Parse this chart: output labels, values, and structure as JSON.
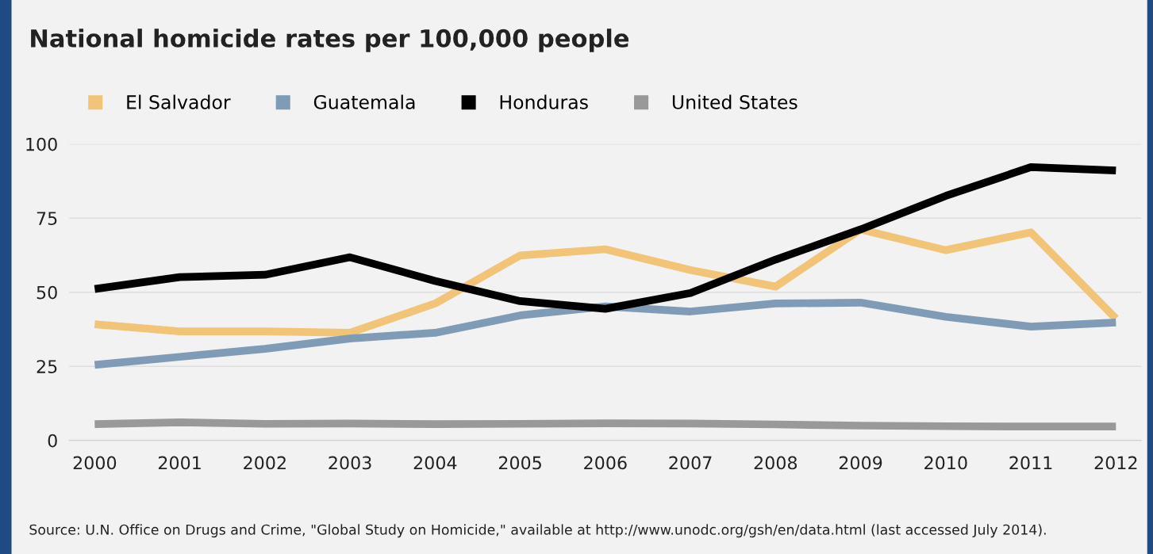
{
  "chart_data": {
    "type": "line",
    "title": "National homicide rates per 100,000 people",
    "x": [
      2000,
      2001,
      2002,
      2003,
      2004,
      2005,
      2006,
      2007,
      2008,
      2009,
      2010,
      2011,
      2012
    ],
    "series": [
      {
        "name": "El Salvador",
        "color": "#f1c478",
        "values": [
          39.2,
          36.8,
          36.8,
          36.3,
          46.2,
          62.4,
          64.5,
          57.5,
          51.9,
          71.2,
          64.2,
          70.2,
          41.1
        ]
      },
      {
        "name": "Guatemala",
        "color": "#7f9bb6",
        "values": [
          25.5,
          28.2,
          30.9,
          34.4,
          36.3,
          42.2,
          45.2,
          43.5,
          46.2,
          46.5,
          41.7,
          38.4,
          39.8
        ]
      },
      {
        "name": "Honduras",
        "color": "#000000",
        "values": [
          51.1,
          55.1,
          55.9,
          61.8,
          53.8,
          47.0,
          44.4,
          49.7,
          61.0,
          71.2,
          82.5,
          92.2,
          91.1
        ]
      },
      {
        "name": "United States",
        "color": "#999999",
        "values": [
          5.5,
          6.1,
          5.6,
          5.7,
          5.5,
          5.6,
          5.8,
          5.7,
          5.4,
          5.0,
          4.8,
          4.7,
          4.7
        ]
      }
    ],
    "xlim": [
      1999.7,
      2012.3
    ],
    "xticks": [
      2000,
      2001,
      2002,
      2003,
      2004,
      2005,
      2006,
      2007,
      2008,
      2009,
      2010,
      2011,
      2012
    ],
    "ylim": [
      0,
      100
    ],
    "yticks": [
      0,
      25,
      50,
      75,
      100
    ],
    "grid": "y",
    "legend": "top left",
    "line_style": "solid",
    "annotations": [
      "Source: U.N. Office on Drugs and Crime, \"Global Study on Homicide,\" available at http://www.unodc.org/gsh/en/data.html (last accessed July 2014)."
    ]
  }
}
